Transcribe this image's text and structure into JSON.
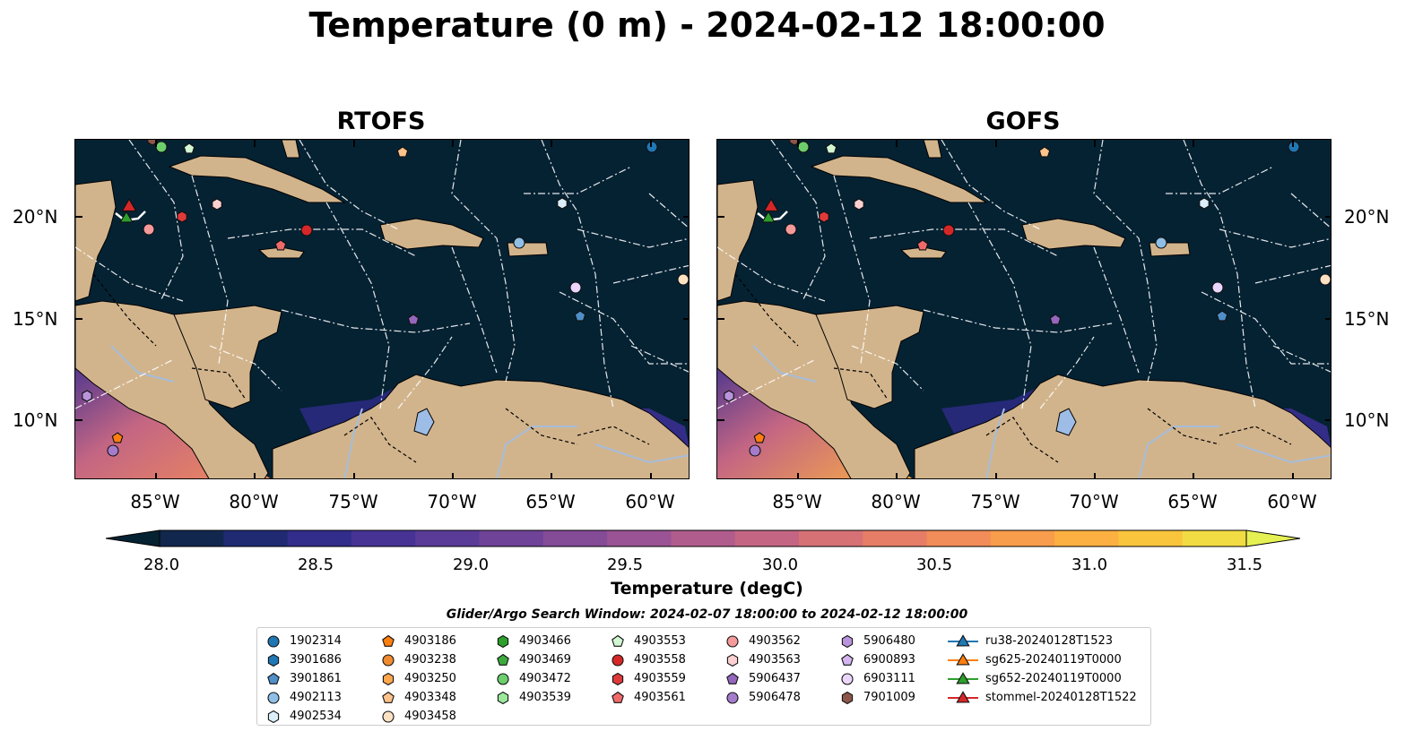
{
  "title": "Temperature (0 m) - 2024-02-12 18:00:00",
  "panels": [
    {
      "title": "RTOFS"
    },
    {
      "title": "GOFS"
    }
  ],
  "lat_ticks": [
    "20°N",
    "15°N",
    "10°N"
  ],
  "lon_ticks": [
    "85°W",
    "80°W",
    "75°W",
    "70°W",
    "65°W",
    "60°W"
  ],
  "colorbar": {
    "label": "Temperature (degC)",
    "min": 28.0,
    "max": 31.5,
    "ticks": [
      "28.0",
      "28.5",
      "29.0",
      "29.5",
      "30.0",
      "30.5",
      "31.0",
      "31.5"
    ],
    "colors": [
      "#052233",
      "#12274e",
      "#1f2a73",
      "#322d8a",
      "#463394",
      "#5a3b97",
      "#6f4398",
      "#844b97",
      "#9a5394",
      "#b05c8d",
      "#c46683",
      "#d67176",
      "#e67d67",
      "#f28c58",
      "#f89d4b",
      "#fbb041",
      "#f9c53d",
      "#f2dc44",
      "#e5f152"
    ]
  },
  "search_window": "Glider/Argo Search Window: 2024-02-07 18:00:00 to 2024-02-12 18:00:00",
  "legend": [
    {
      "label": "1902314",
      "marker": "circle",
      "color": "#1f77b4"
    },
    {
      "label": "3901686",
      "marker": "hexagon",
      "color": "#1f77b4"
    },
    {
      "label": "3901861",
      "marker": "pentagon",
      "color": "#4f8fc8"
    },
    {
      "label": "4902113",
      "marker": "circle",
      "color": "#8fbfe6"
    },
    {
      "label": "4902534",
      "marker": "hexagon",
      "color": "#dbeefa"
    },
    {
      "label": "4903186",
      "marker": "pentagon",
      "color": "#ff7f0e"
    },
    {
      "label": "4903238",
      "marker": "circle",
      "color": "#f08a30"
    },
    {
      "label": "4903250",
      "marker": "hexagon",
      "color": "#ffa64d"
    },
    {
      "label": "4903348",
      "marker": "pentagon",
      "color": "#ffc28a"
    },
    {
      "label": "4903458",
      "marker": "circle",
      "color": "#ffe2c4"
    },
    {
      "label": "4903466",
      "marker": "hexagon",
      "color": "#2ca02c"
    },
    {
      "label": "4903469",
      "marker": "pentagon",
      "color": "#3daa3d"
    },
    {
      "label": "4903472",
      "marker": "circle",
      "color": "#6ccf6c"
    },
    {
      "label": "4903539",
      "marker": "hexagon",
      "color": "#9be89b"
    },
    {
      "label": "4903553",
      "marker": "pentagon",
      "color": "#d2f7d2"
    },
    {
      "label": "4903558",
      "marker": "circle",
      "color": "#d62728"
    },
    {
      "label": "4903559",
      "marker": "hexagon",
      "color": "#e0393a"
    },
    {
      "label": "4903561",
      "marker": "pentagon",
      "color": "#f06a6a"
    },
    {
      "label": "4903562",
      "marker": "circle",
      "color": "#f59a9a"
    },
    {
      "label": "4903563",
      "marker": "hexagon",
      "color": "#fcd0d0"
    },
    {
      "label": "5906437",
      "marker": "pentagon",
      "color": "#9467bd"
    },
    {
      "label": "5906478",
      "marker": "circle",
      "color": "#a57ccc"
    },
    {
      "label": "5906480",
      "marker": "hexagon",
      "color": "#b994dc"
    },
    {
      "label": "6900893",
      "marker": "pentagon",
      "color": "#d4b5ef"
    },
    {
      "label": "6903111",
      "marker": "circle",
      "color": "#ebd6fb"
    },
    {
      "label": "7901009",
      "marker": "hexagon",
      "color": "#8c564b"
    },
    {
      "label": "ru38-20240128T1523",
      "marker": "triangle-line",
      "color": "#1f77b4"
    },
    {
      "label": "sg625-20240119T0000",
      "marker": "triangle-line",
      "color": "#ff7f0e"
    },
    {
      "label": "sg652-20240119T0000",
      "marker": "triangle-line",
      "color": "#2ca02c"
    },
    {
      "label": "stommel-20240128T1522",
      "marker": "triangle-line",
      "color": "#d62728"
    }
  ],
  "map_colors": {
    "ocean": "#052233",
    "land": "#d2b48c",
    "river": "#a6bddb",
    "lake": "#9dbde6"
  }
}
